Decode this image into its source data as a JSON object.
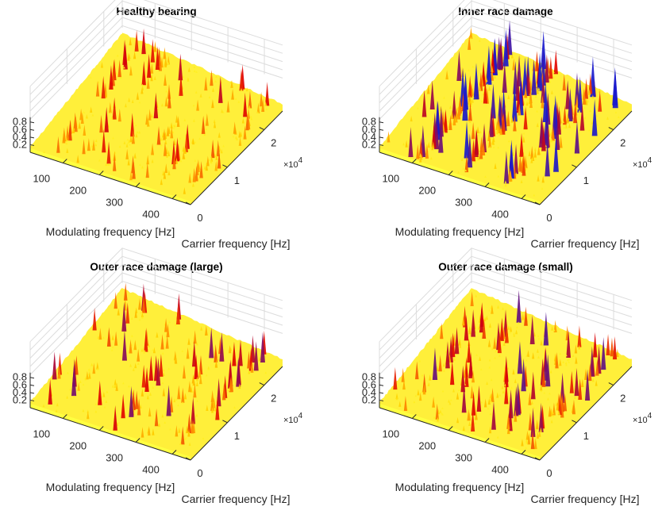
{
  "chart_data": [
    {
      "type": "surface",
      "title": "Healthy bearing",
      "xlabel": "Modulating frequency [Hz]",
      "ylabel": "Carrier frequency [Hz]",
      "zlabel": "",
      "x_ticks": [
        "100",
        "200",
        "300",
        "400"
      ],
      "x_tick_values": [
        100,
        200,
        300,
        400
      ],
      "xlim": [
        10,
        450
      ],
      "y_ticks": [
        "0",
        "1",
        "2"
      ],
      "y_tick_values": [
        0,
        1,
        2
      ],
      "y_exponent_label": "×10",
      "y_exponent": "4",
      "ylim": [
        0,
        2.5
      ],
      "z_ticks": [
        "0.2",
        "0.4",
        "0.6",
        "0.8"
      ],
      "z_tick_values": [
        0.2,
        0.4,
        0.6,
        0.8
      ],
      "zlim": [
        0,
        1.6
      ],
      "grid": true,
      "colormap": "autumn-blue",
      "spike_density": 0.35,
      "spike_strength": 0.55,
      "peak_band_modulating_hz": [
        70,
        140,
        210,
        280,
        350,
        420
      ]
    },
    {
      "type": "surface",
      "title": "Inner race damage",
      "xlabel": "Modulating frequency [Hz]",
      "ylabel": "Carrier frequency [Hz]",
      "zlabel": "",
      "x_ticks": [
        "100",
        "200",
        "300",
        "400"
      ],
      "x_tick_values": [
        100,
        200,
        300,
        400
      ],
      "xlim": [
        10,
        450
      ],
      "y_ticks": [
        "0",
        "1",
        "2"
      ],
      "y_tick_values": [
        0,
        1,
        2
      ],
      "y_exponent_label": "×10",
      "y_exponent": "4",
      "ylim": [
        0,
        2.5
      ],
      "z_ticks": [
        "0.2",
        "0.4",
        "0.6",
        "0.8"
      ],
      "z_tick_values": [
        0.2,
        0.4,
        0.6,
        0.8
      ],
      "zlim": [
        0,
        1.6
      ],
      "grid": true,
      "colormap": "autumn-blue",
      "spike_density": 0.6,
      "spike_strength": 0.85,
      "peak_band_modulating_hz": [
        118,
        236,
        354
      ]
    },
    {
      "type": "surface",
      "title": "Outer race damage (large)",
      "xlabel": "Modulating frequency [Hz]",
      "ylabel": "Carrier frequency [Hz]",
      "zlabel": "",
      "x_ticks": [
        "100",
        "200",
        "300",
        "400"
      ],
      "x_tick_values": [
        100,
        200,
        300,
        400
      ],
      "xlim": [
        10,
        450
      ],
      "y_ticks": [
        "0",
        "1",
        "2"
      ],
      "y_tick_values": [
        0,
        1,
        2
      ],
      "y_exponent_label": "×10",
      "y_exponent": "4",
      "ylim": [
        0,
        2.5
      ],
      "z_ticks": [
        "0.2",
        "0.4",
        "0.6",
        "0.8"
      ],
      "z_tick_values": [
        0.2,
        0.4,
        0.6,
        0.8
      ],
      "zlim": [
        0,
        1.6
      ],
      "grid": true,
      "colormap": "autumn-blue",
      "spike_density": 0.3,
      "spike_strength": 0.65,
      "peak_band_modulating_hz": [
        81,
        162,
        243,
        324,
        405
      ]
    },
    {
      "type": "surface",
      "title": "Outer race damage (small)",
      "xlabel": "Modulating frequency [Hz]",
      "ylabel": "Carrier frequency [Hz]",
      "zlabel": "",
      "x_ticks": [
        "100",
        "200",
        "300",
        "400"
      ],
      "x_tick_values": [
        100,
        200,
        300,
        400
      ],
      "xlim": [
        10,
        450
      ],
      "y_ticks": [
        "0",
        "1",
        "2"
      ],
      "y_tick_values": [
        0,
        1,
        2
      ],
      "y_exponent_label": "×10",
      "y_exponent": "4",
      "ylim": [
        0,
        2.5
      ],
      "z_ticks": [
        "0.2",
        "0.4",
        "0.6",
        "0.8"
      ],
      "z_tick_values": [
        0.2,
        0.4,
        0.6,
        0.8
      ],
      "zlim": [
        0,
        1.6
      ],
      "grid": true,
      "colormap": "autumn-blue",
      "spike_density": 0.38,
      "spike_strength": 0.7,
      "peak_band_modulating_hz": [
        81,
        162,
        243,
        324,
        405
      ]
    }
  ],
  "colors": {
    "surface_low": "#ffff33",
    "surface_mid": "#ff8c00",
    "surface_high": "#e00000",
    "surface_peak": "#1a1acc",
    "gridline": "#dcdcdc",
    "axis": "#262626"
  }
}
